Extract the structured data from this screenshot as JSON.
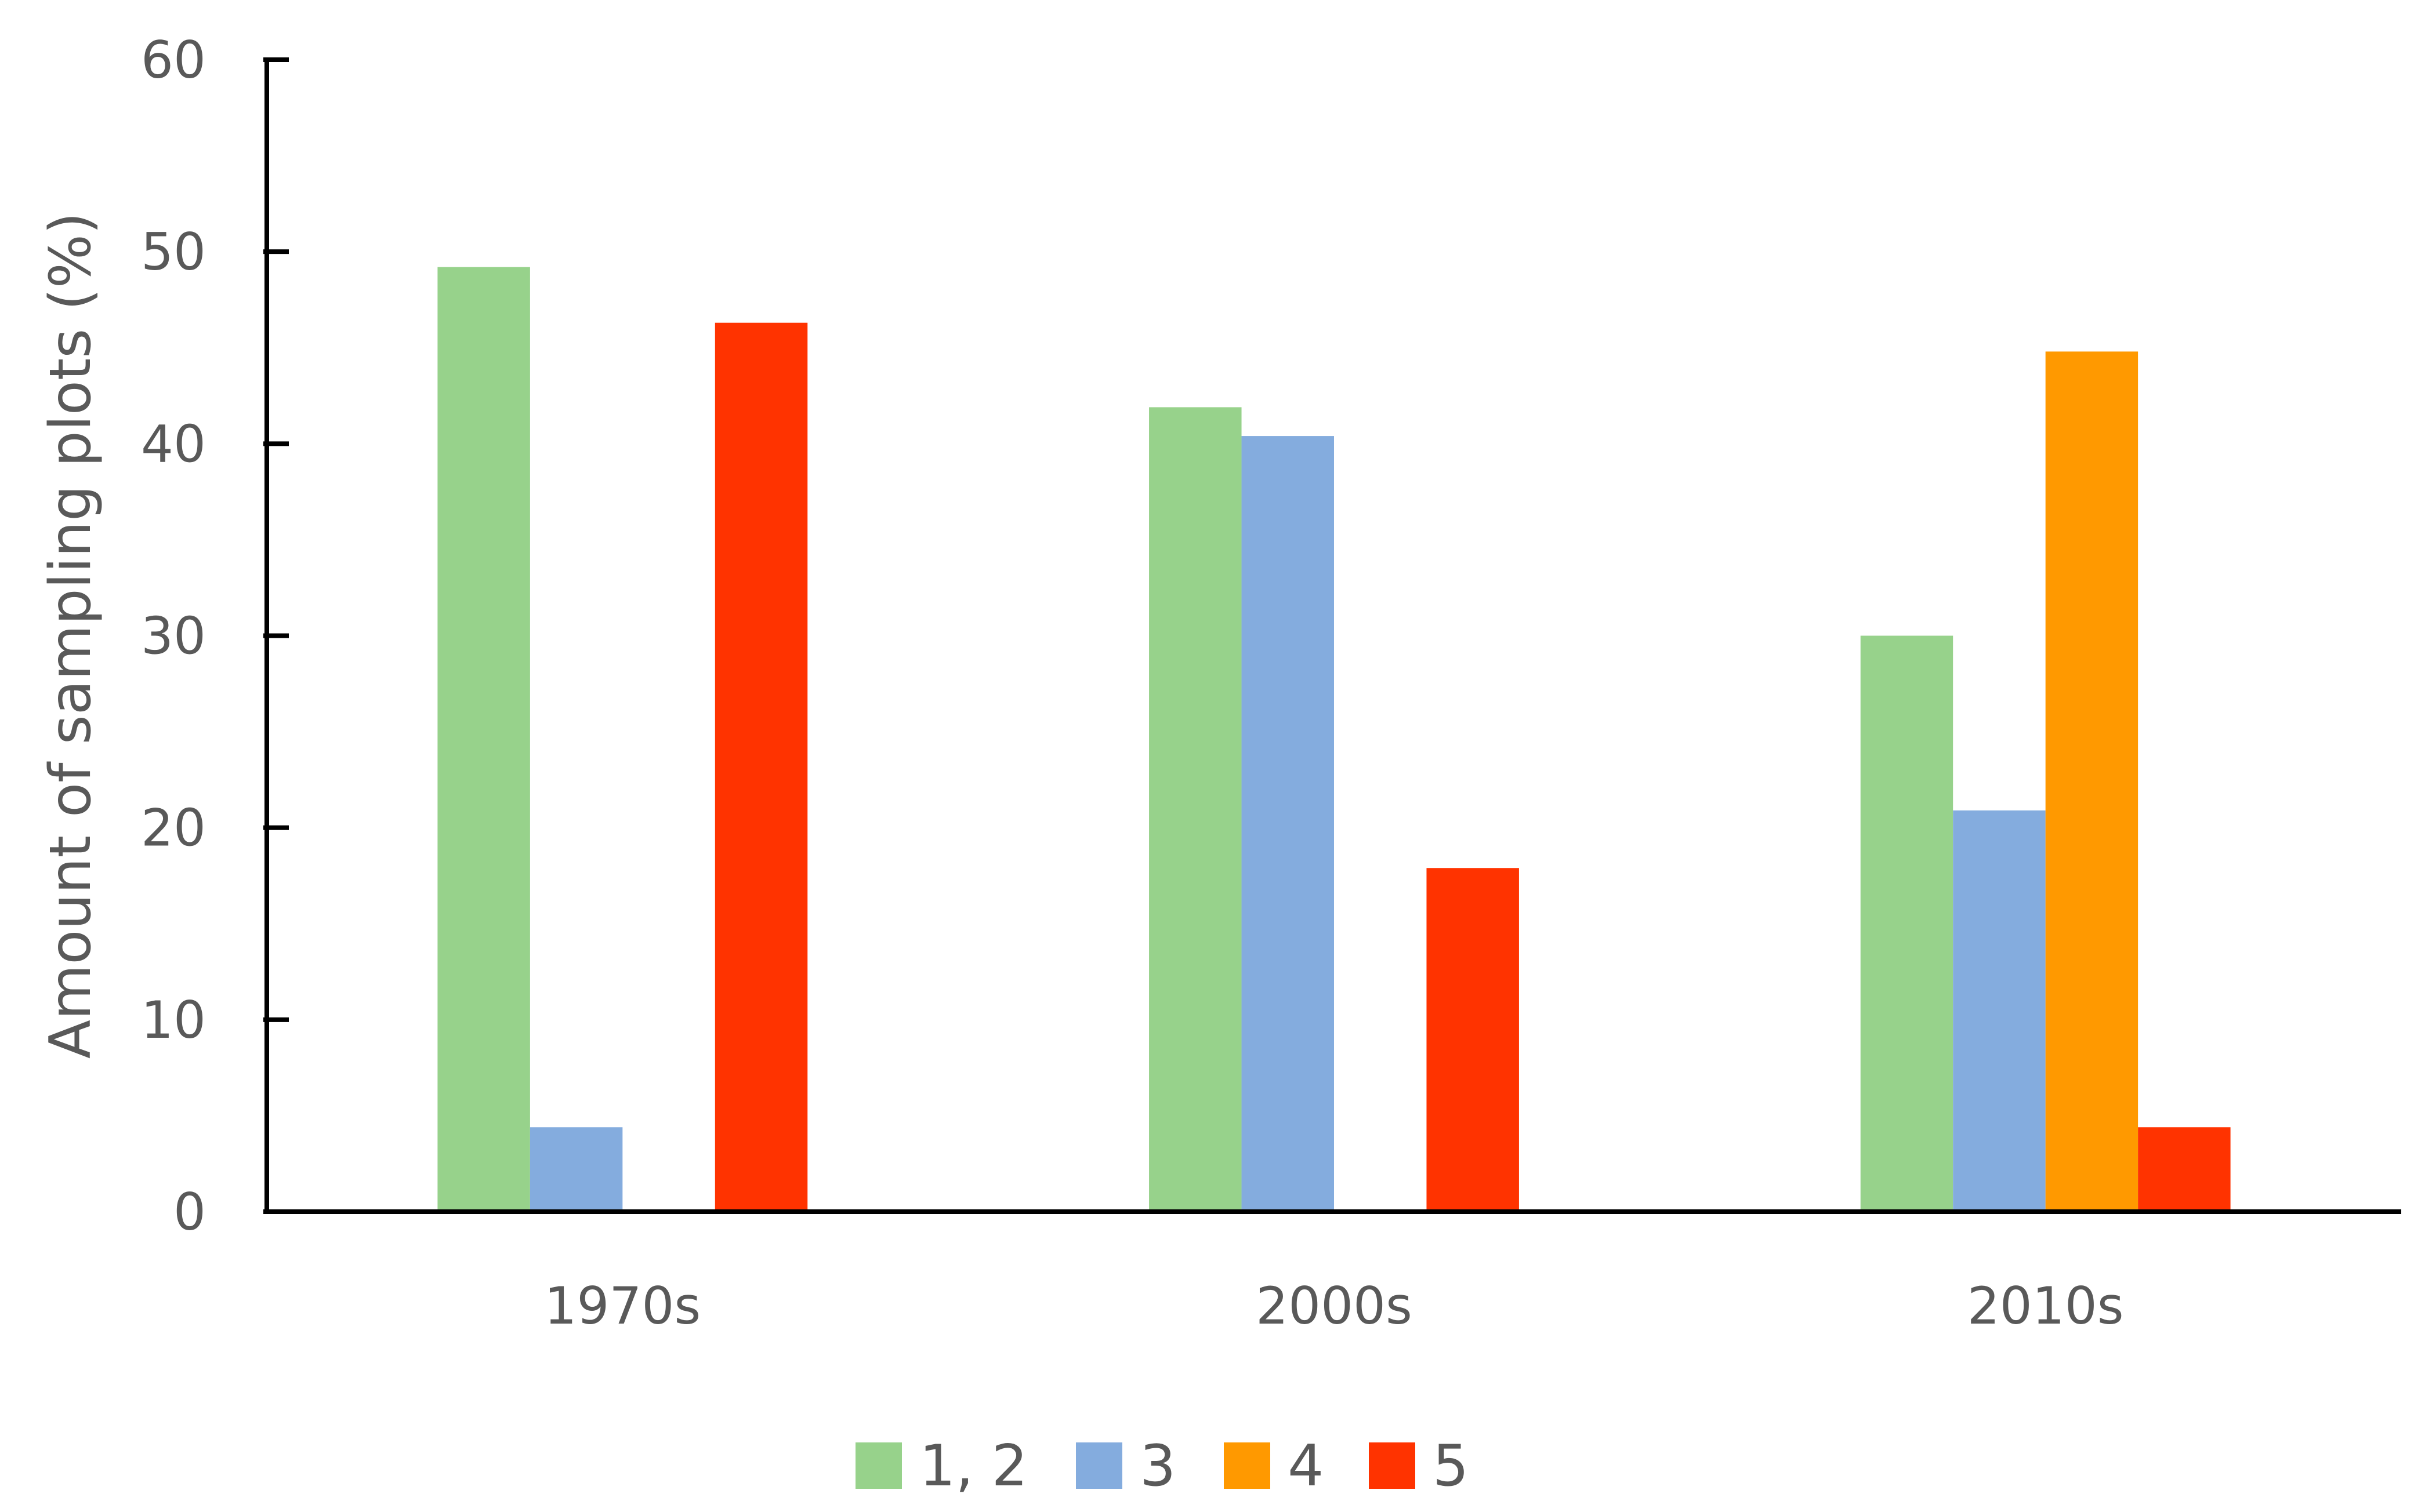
{
  "chart_data": {
    "type": "bar",
    "categories": [
      "1970s",
      "2000s",
      "2010s"
    ],
    "series": [
      {
        "name": "1, 2",
        "color": "#97D28B",
        "values": [
          49.2,
          41.9,
          30.0
        ]
      },
      {
        "name": "3",
        "color": "#84ACDE",
        "values": [
          4.4,
          40.4,
          20.9
        ]
      },
      {
        "name": "4",
        "color": "#FF9900",
        "values": [
          0,
          0,
          44.8
        ]
      },
      {
        "name": "5",
        "color": "#FF3300",
        "values": [
          46.3,
          17.9,
          4.4
        ]
      }
    ],
    "title": "",
    "xlabel": "",
    "ylabel": "Amount of sampling plots (%)",
    "ylim": [
      0,
      60
    ],
    "yticks": [
      "0",
      "10",
      "20",
      "30",
      "40",
      "50",
      "60"
    ],
    "grid": false,
    "legend_position": "bottom"
  }
}
